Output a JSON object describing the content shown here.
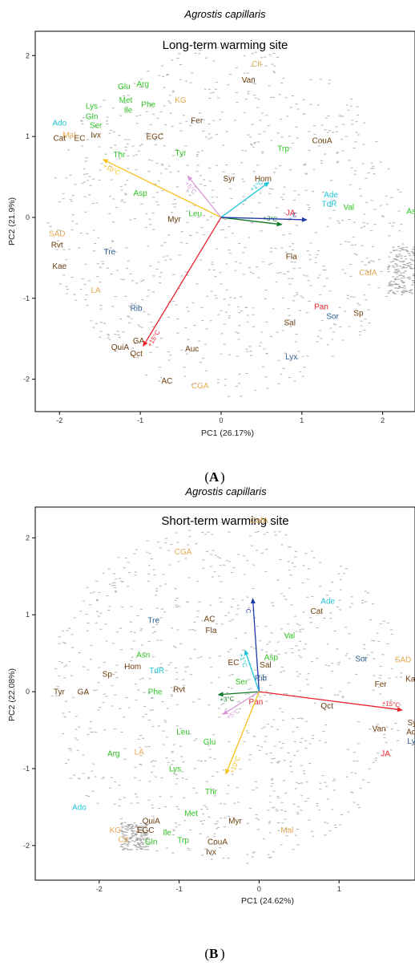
{
  "chart_data": [
    {
      "type": "scatter",
      "panel_label_letter": "A",
      "species": "Agrostis capillaris",
      "title": "Long-term warming site",
      "xlabel": "PC1 (26.17%)",
      "ylabel": "PC2 (21.9%)",
      "xlim": [
        -2.3,
        2.4
      ],
      "ylim": [
        -2.4,
        2.3
      ],
      "xticks": [
        -2,
        -1,
        0,
        1,
        2
      ],
      "yticks": [
        -2,
        -1,
        0,
        1,
        2
      ],
      "arrows": [
        {
          "label": "+10°C",
          "x": -1.47,
          "y": 0.72,
          "color": "#f5c218"
        },
        {
          "label": "+5°C",
          "x": -0.42,
          "y": 0.52,
          "color": "#d89ad6"
        },
        {
          "label": "+1°C",
          "x": 0.6,
          "y": 0.44,
          "color": "#21c6d6"
        },
        {
          "label": "+3°C",
          "x": 0.76,
          "y": -0.09,
          "color": "#0e7a24"
        },
        {
          "label": "C",
          "x": 1.07,
          "y": -0.03,
          "color": "#1f3aa8"
        },
        {
          "label": "+15°C",
          "x": -0.97,
          "y": -1.6,
          "color": "#e8202a"
        }
      ],
      "labels": [
        {
          "t": "Cit",
          "x": 0.44,
          "y": 1.9,
          "c": "#e3a852"
        },
        {
          "t": "Van",
          "x": 0.34,
          "y": 1.7,
          "c": "#6b3d0e"
        },
        {
          "t": "Glu",
          "x": -1.2,
          "y": 1.62,
          "c": "#2fc323"
        },
        {
          "t": "Arg",
          "x": -0.97,
          "y": 1.65,
          "c": "#2fc323"
        },
        {
          "t": "Met",
          "x": -1.18,
          "y": 1.45,
          "c": "#2fc323"
        },
        {
          "t": "Phe",
          "x": -0.9,
          "y": 1.4,
          "c": "#2fc323"
        },
        {
          "t": "Lys",
          "x": -1.6,
          "y": 1.38,
          "c": "#2fc323"
        },
        {
          "t": "Ile",
          "x": -1.15,
          "y": 1.33,
          "c": "#2fc323"
        },
        {
          "t": "Gln",
          "x": -1.6,
          "y": 1.25,
          "c": "#2fc323"
        },
        {
          "t": "Ser",
          "x": -1.55,
          "y": 1.14,
          "c": "#2fc323"
        },
        {
          "t": "KG",
          "x": -0.5,
          "y": 1.45,
          "c": "#e3a852"
        },
        {
          "t": "Mal",
          "x": -1.88,
          "y": 1.02,
          "c": "#e3a852"
        },
        {
          "t": "Ivx",
          "x": -1.55,
          "y": 1.02,
          "c": "#6b3d0e"
        },
        {
          "t": "EGC",
          "x": -0.82,
          "y": 1.0,
          "c": "#6b3d0e"
        },
        {
          "t": "Fer",
          "x": -0.3,
          "y": 1.2,
          "c": "#6b3d0e"
        },
        {
          "t": "Ado",
          "x": -2.0,
          "y": 1.17,
          "c": "#21c6d6"
        },
        {
          "t": "Cat",
          "x": -2.0,
          "y": 0.98,
          "c": "#6b3d0e"
        },
        {
          "t": "EC",
          "x": -1.75,
          "y": 0.98,
          "c": "#6b3d0e"
        },
        {
          "t": "Thr",
          "x": -1.26,
          "y": 0.78,
          "c": "#2fc323"
        },
        {
          "t": "Tyr",
          "x": -0.5,
          "y": 0.8,
          "c": "#2fc323"
        },
        {
          "t": "CouA",
          "x": 1.25,
          "y": 0.95,
          "c": "#6b3d0e"
        },
        {
          "t": "Trp",
          "x": 0.77,
          "y": 0.85,
          "c": "#2fc323"
        },
        {
          "t": "Syr",
          "x": 0.1,
          "y": 0.48,
          "c": "#6b3d0e"
        },
        {
          "t": "Hom",
          "x": 0.52,
          "y": 0.48,
          "c": "#6b3d0e"
        },
        {
          "t": "Asp",
          "x": -1.0,
          "y": 0.3,
          "c": "#2fc323"
        },
        {
          "t": "Ade",
          "x": 1.36,
          "y": 0.28,
          "c": "#21c6d6"
        },
        {
          "t": "TdR",
          "x": 1.34,
          "y": 0.17,
          "c": "#21c6d6"
        },
        {
          "t": "Val",
          "x": 1.58,
          "y": 0.13,
          "c": "#2fc323"
        },
        {
          "t": "Asn",
          "x": 2.38,
          "y": 0.08,
          "c": "#2fc323"
        },
        {
          "t": "JA",
          "x": 0.86,
          "y": 0.06,
          "c": "#e8202a"
        },
        {
          "t": "Leu",
          "x": -0.32,
          "y": 0.05,
          "c": "#2fc323"
        },
        {
          "t": "Myr",
          "x": -0.58,
          "y": -0.02,
          "c": "#6b3d0e"
        },
        {
          "t": "SAD",
          "x": -2.03,
          "y": -0.2,
          "c": "#e3a852"
        },
        {
          "t": "Rvt",
          "x": -2.03,
          "y": -0.34,
          "c": "#6b3d0e"
        },
        {
          "t": "Tre",
          "x": -1.38,
          "y": -0.42,
          "c": "#2b5d93"
        },
        {
          "t": "Fla",
          "x": 0.87,
          "y": -0.48,
          "c": "#6b3d0e"
        },
        {
          "t": "Kae",
          "x": -2.0,
          "y": -0.6,
          "c": "#6b3d0e"
        },
        {
          "t": "CafA",
          "x": 1.82,
          "y": -0.68,
          "c": "#e3a852"
        },
        {
          "t": "LA",
          "x": -1.55,
          "y": -0.9,
          "c": "#e3a852"
        },
        {
          "t": "Rib",
          "x": -1.05,
          "y": -1.12,
          "c": "#2b5d93"
        },
        {
          "t": "Pan",
          "x": 1.24,
          "y": -1.1,
          "c": "#e8202a"
        },
        {
          "t": "Sor",
          "x": 1.38,
          "y": -1.22,
          "c": "#2b5d93"
        },
        {
          "t": "Sp",
          "x": 1.7,
          "y": -1.18,
          "c": "#6b3d0e"
        },
        {
          "t": "Sal",
          "x": 0.85,
          "y": -1.3,
          "c": "#6b3d0e"
        },
        {
          "t": "GA",
          "x": -1.02,
          "y": -1.52,
          "c": "#6b3d0e"
        },
        {
          "t": "QuiA",
          "x": -1.25,
          "y": -1.6,
          "c": "#6b3d0e"
        },
        {
          "t": "Qct",
          "x": -1.05,
          "y": -1.68,
          "c": "#6b3d0e"
        },
        {
          "t": "Auc",
          "x": -0.36,
          "y": -1.62,
          "c": "#6b3d0e"
        },
        {
          "t": "Lyx",
          "x": 0.87,
          "y": -1.72,
          "c": "#2b5d93"
        },
        {
          "t": "AC",
          "x": -0.67,
          "y": -2.02,
          "c": "#6b3d0e"
        },
        {
          "t": "CGA",
          "x": -0.26,
          "y": -2.08,
          "c": "#e3a852"
        }
      ]
    },
    {
      "type": "scatter",
      "panel_label_letter": "B",
      "species": "Agrostis capillaris",
      "title": "Short-term warming site",
      "xlabel": "PC1 (24.62%)",
      "ylabel": "PC2 (22.08%)",
      "xlim": [
        -2.8,
        1.95
      ],
      "ylim": [
        -2.45,
        2.4
      ],
      "xticks": [
        -2,
        -1,
        0,
        1
      ],
      "yticks": [
        -2,
        -1,
        0,
        1,
        2
      ],
      "arrows": [
        {
          "label": "C",
          "x": -0.08,
          "y": 1.22,
          "color": "#1f3aa8"
        },
        {
          "label": "+1°C",
          "x": -0.18,
          "y": 0.55,
          "color": "#21c6d6"
        },
        {
          "label": "+3°C",
          "x": -0.52,
          "y": -0.04,
          "color": "#0e7a24"
        },
        {
          "label": "+5°C",
          "x": -0.46,
          "y": -0.3,
          "color": "#d89ad6"
        },
        {
          "label": "+10°C",
          "x": -0.42,
          "y": -1.08,
          "color": "#f5c218"
        },
        {
          "label": "+15°C",
          "x": 1.8,
          "y": -0.24,
          "color": "#e8202a"
        }
      ],
      "labels": [
        {
          "t": "CafA",
          "x": 0.0,
          "y": 2.23,
          "c": "#e3a852"
        },
        {
          "t": "CGA",
          "x": -0.95,
          "y": 1.82,
          "c": "#e3a852"
        },
        {
          "t": "Ade",
          "x": 0.86,
          "y": 1.18,
          "c": "#21c6d6"
        },
        {
          "t": "Cat",
          "x": 0.72,
          "y": 1.05,
          "c": "#6b3d0e"
        },
        {
          "t": "Tre",
          "x": -1.32,
          "y": 0.93,
          "c": "#2b5d93"
        },
        {
          "t": "AC",
          "x": -0.62,
          "y": 0.95,
          "c": "#6b3d0e"
        },
        {
          "t": "Fla",
          "x": -0.6,
          "y": 0.8,
          "c": "#6b3d0e"
        },
        {
          "t": "Val",
          "x": 0.38,
          "y": 0.73,
          "c": "#2fc323"
        },
        {
          "t": "Asp",
          "x": 0.15,
          "y": 0.45,
          "c": "#2fc323"
        },
        {
          "t": "EC",
          "x": -0.32,
          "y": 0.38,
          "c": "#6b3d0e"
        },
        {
          "t": "Sal",
          "x": 0.08,
          "y": 0.35,
          "c": "#6b3d0e"
        },
        {
          "t": "Sor",
          "x": 1.28,
          "y": 0.43,
          "c": "#2b5d93"
        },
        {
          "t": "SAD",
          "x": 1.8,
          "y": 0.42,
          "c": "#e3a852"
        },
        {
          "t": "Kae",
          "x": 1.92,
          "y": 0.17,
          "c": "#6b3d0e"
        },
        {
          "t": "Asn",
          "x": -1.45,
          "y": 0.48,
          "c": "#2fc323"
        },
        {
          "t": "Hom",
          "x": -1.58,
          "y": 0.33,
          "c": "#6b3d0e"
        },
        {
          "t": "TdR",
          "x": -1.28,
          "y": 0.28,
          "c": "#21c6d6"
        },
        {
          "t": "Sp",
          "x": -1.9,
          "y": 0.23,
          "c": "#6b3d0e"
        },
        {
          "t": "Rib",
          "x": 0.02,
          "y": 0.18,
          "c": "#2b5d93"
        },
        {
          "t": "Ser",
          "x": -0.22,
          "y": 0.13,
          "c": "#2fc323"
        },
        {
          "t": "Fer",
          "x": 1.52,
          "y": 0.1,
          "c": "#6b3d0e"
        },
        {
          "t": "Tyr",
          "x": -2.5,
          "y": 0.0,
          "c": "#6b3d0e"
        },
        {
          "t": "GA",
          "x": -2.2,
          "y": 0.0,
          "c": "#6b3d0e"
        },
        {
          "t": "Phe",
          "x": -1.3,
          "y": 0.0,
          "c": "#2fc323"
        },
        {
          "t": "Rvt",
          "x": -1.0,
          "y": 0.03,
          "c": "#6b3d0e"
        },
        {
          "t": "Pan",
          "x": -0.04,
          "y": -0.13,
          "c": "#e8202a"
        },
        {
          "t": "Qct",
          "x": 0.85,
          "y": -0.18,
          "c": "#6b3d0e"
        },
        {
          "t": "Van",
          "x": 1.5,
          "y": -0.48,
          "c": "#6b3d0e"
        },
        {
          "t": "Syr",
          "x": 1.93,
          "y": -0.4,
          "c": "#6b3d0e"
        },
        {
          "t": "Ado",
          "x": 1.93,
          "y": -0.52,
          "c": "#6b3d0e"
        },
        {
          "t": "Lyx",
          "x": 1.93,
          "y": -0.64,
          "c": "#2b5d93"
        },
        {
          "t": "JA",
          "x": 1.58,
          "y": -0.8,
          "c": "#e8202a"
        },
        {
          "t": "Leu",
          "x": -0.95,
          "y": -0.52,
          "c": "#2fc323"
        },
        {
          "t": "Glu",
          "x": -0.62,
          "y": -0.65,
          "c": "#2fc323"
        },
        {
          "t": "Arg",
          "x": -1.82,
          "y": -0.8,
          "c": "#2fc323"
        },
        {
          "t": "LA",
          "x": -1.5,
          "y": -0.78,
          "c": "#e3a852"
        },
        {
          "t": "Lys",
          "x": -1.05,
          "y": -1.0,
          "c": "#2fc323"
        },
        {
          "t": "Thr",
          "x": -0.6,
          "y": -1.3,
          "c": "#2fc323"
        },
        {
          "t": "Ado",
          "x": -2.25,
          "y": -1.5,
          "c": "#21c6d6"
        },
        {
          "t": "Met",
          "x": -0.85,
          "y": -1.58,
          "c": "#2fc323"
        },
        {
          "t": "QuiA",
          "x": -1.35,
          "y": -1.68,
          "c": "#6b3d0e"
        },
        {
          "t": "Myr",
          "x": -0.3,
          "y": -1.68,
          "c": "#6b3d0e"
        },
        {
          "t": "Mal",
          "x": 0.35,
          "y": -1.8,
          "c": "#e3a852"
        },
        {
          "t": "EGC",
          "x": -1.42,
          "y": -1.8,
          "c": "#6b3d0e"
        },
        {
          "t": "KG",
          "x": -1.8,
          "y": -1.8,
          "c": "#e3a852"
        },
        {
          "t": "Ile",
          "x": -1.15,
          "y": -1.83,
          "c": "#2fc323"
        },
        {
          "t": "Cit",
          "x": -1.7,
          "y": -1.92,
          "c": "#e3a852"
        },
        {
          "t": "Gln",
          "x": -1.35,
          "y": -1.95,
          "c": "#2fc323"
        },
        {
          "t": "Trp",
          "x": -0.95,
          "y": -1.93,
          "c": "#2fc323"
        },
        {
          "t": "CouA",
          "x": -0.52,
          "y": -1.95,
          "c": "#6b3d0e"
        },
        {
          "t": "Ivx",
          "x": -0.6,
          "y": -2.08,
          "c": "#6b3d0e"
        }
      ]
    }
  ]
}
